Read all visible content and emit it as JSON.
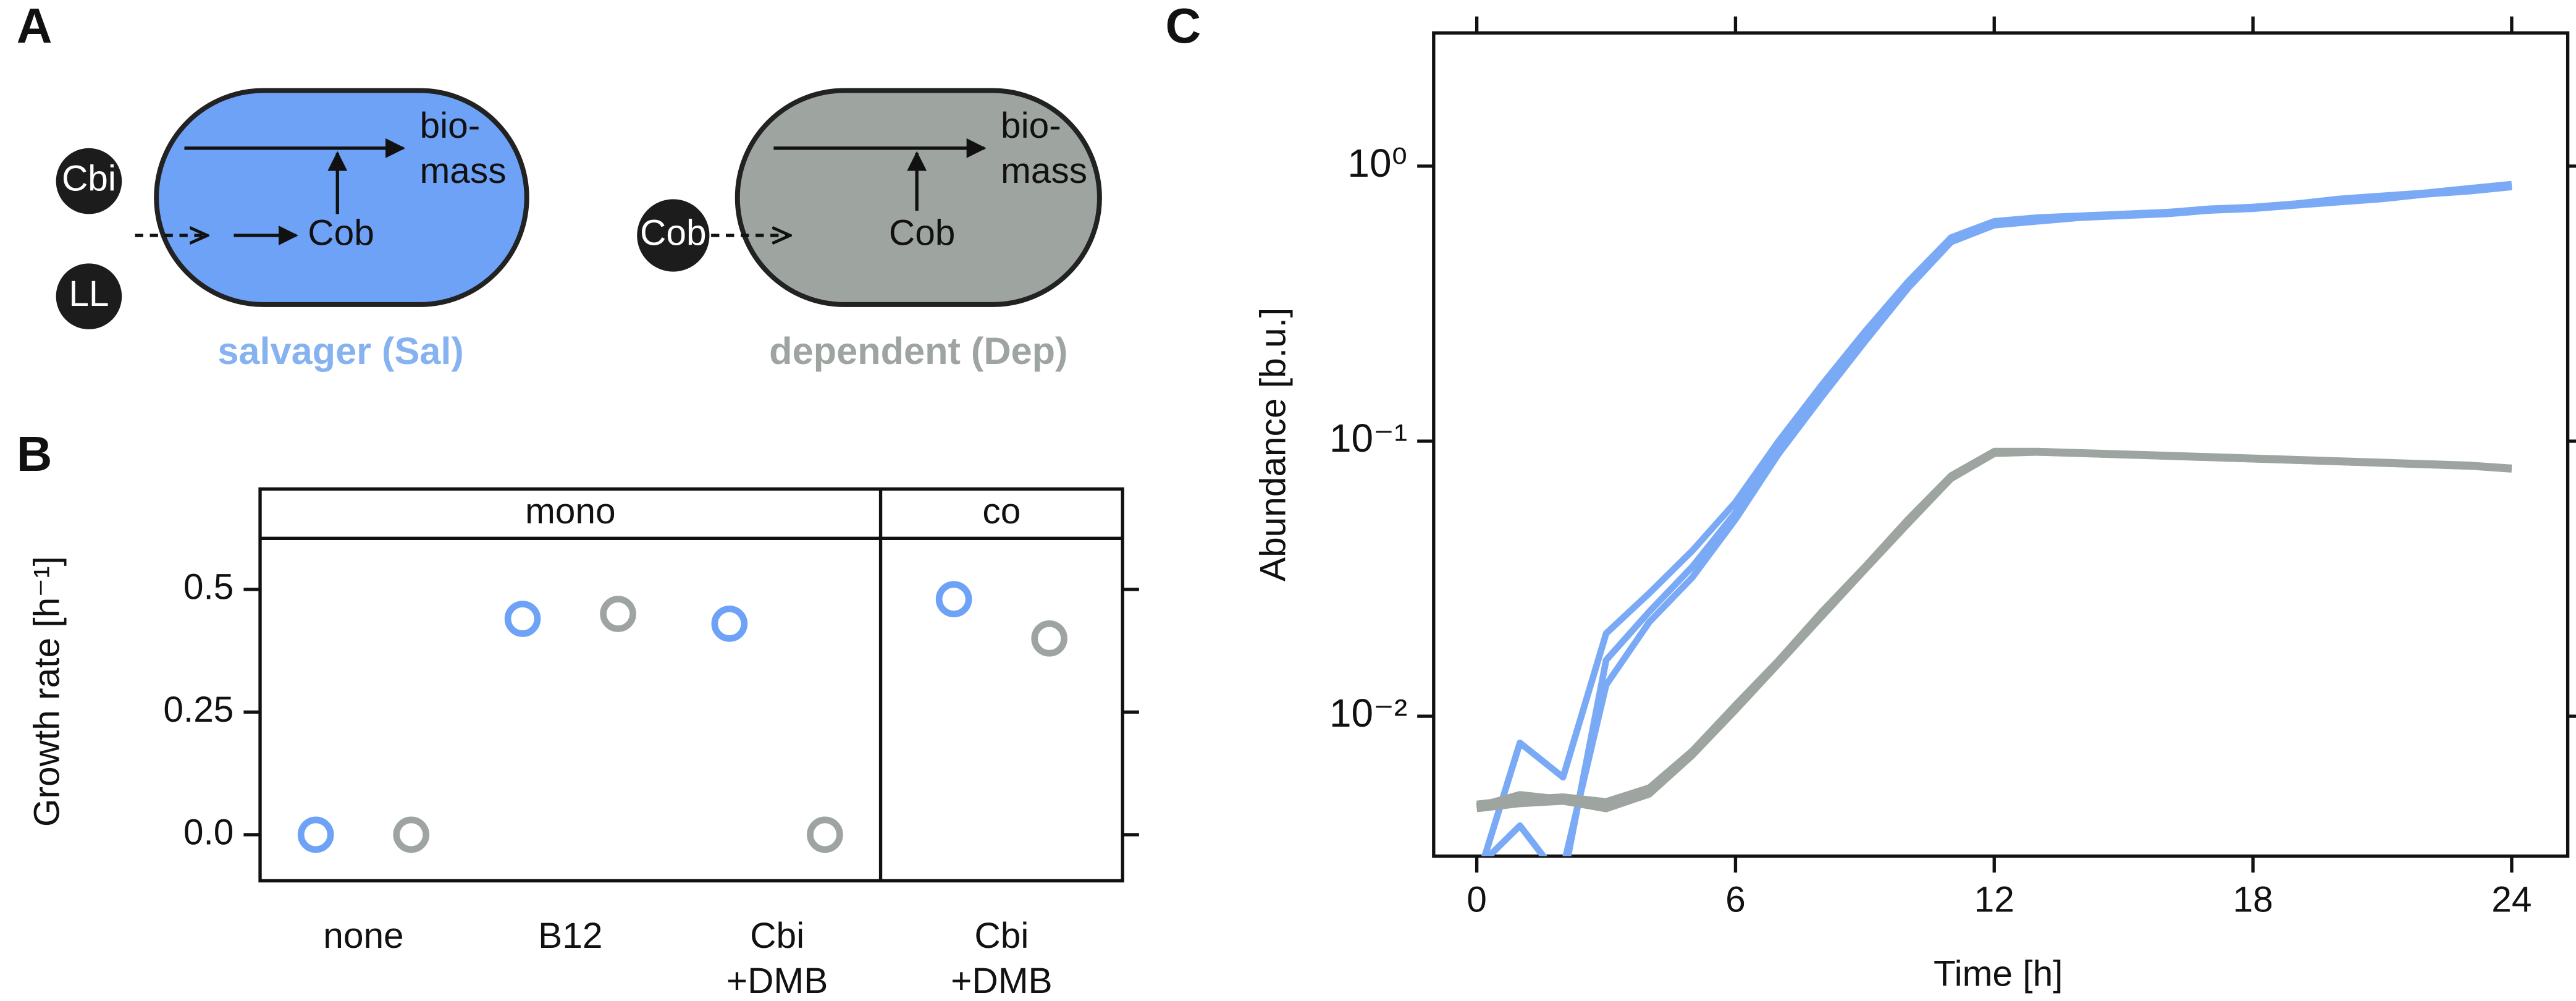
{
  "diagram": {
    "label": "A",
    "cells": [
      {
        "label": "salvager (Sal)",
        "color": "#6ea2f7",
        "label_color": "#86b2f0",
        "inputs": [
          "Cbi",
          "LL"
        ],
        "internal": "Cob",
        "output": "bio-\nmass"
      },
      {
        "label": "dependent (Dep)",
        "color": "#9ea5a1",
        "label_color": "#9ea5a1",
        "inputs": [
          "Cob"
        ],
        "internal": "Cob",
        "output": "bio-\nmass"
      }
    ]
  },
  "chart_data": [
    {
      "type": "dot",
      "label": "B",
      "ylabel": "Growth rate [h⁻¹]",
      "facets": [
        {
          "label": "mono",
          "categories": [
            "none",
            "B12",
            "Cbi\n+DMB"
          ]
        },
        {
          "label": "co",
          "categories": [
            "Cbi\n+DMB"
          ]
        }
      ],
      "series": [
        {
          "color": "#6ea2f7",
          "values": [
            0,
            0.44,
            0.43,
            0.48
          ]
        },
        {
          "color": "#9ea5a1",
          "values": [
            0,
            0.45,
            0,
            0.4
          ]
        }
      ],
      "ylim": [
        -0.094,
        0.604
      ],
      "yticks": [
        {
          "value": 0,
          "label": "0.0"
        },
        0.25,
        0.5
      ]
    },
    {
      "type": "line",
      "label": "C",
      "xlabel": "Time [h]",
      "ylabel": "Abundance [b.u.]",
      "log_y": true,
      "x": [
        0,
        1,
        2,
        3,
        4,
        5,
        6,
        7,
        8,
        9,
        10,
        11,
        12,
        13,
        14,
        15,
        16,
        17,
        18,
        19,
        20,
        21,
        22,
        23,
        24
      ],
      "series": [
        {
          "color": "#7aaaf5",
          "values": [
            0.0025,
            0.008,
            0.006,
            0.02,
            0.028,
            0.04,
            0.06,
            0.1,
            0.16,
            0.25,
            0.38,
            0.55,
            0.63,
            0.65,
            0.66,
            0.67,
            0.68,
            0.69,
            0.71,
            0.73,
            0.75,
            0.77,
            0.8,
            0.82,
            0.85
          ]
        },
        {
          "color": "#7aaaf5",
          "values": [
            0.0028,
            0.004,
            0.0025,
            0.016,
            0.024,
            0.035,
            0.055,
            0.095,
            0.15,
            0.24,
            0.37,
            0.54,
            0.62,
            0.64,
            0.65,
            0.67,
            0.68,
            0.7,
            0.71,
            0.73,
            0.76,
            0.78,
            0.8,
            0.83,
            0.86
          ]
        },
        {
          "color": "#7aaaf5",
          "values": [
            0.0026,
            0.003,
            0.0028,
            0.013,
            0.022,
            0.032,
            0.052,
            0.09,
            0.145,
            0.23,
            0.36,
            0.53,
            0.61,
            0.63,
            0.65,
            0.66,
            0.67,
            0.69,
            0.7,
            0.72,
            0.74,
            0.76,
            0.79,
            0.81,
            0.84
          ]
        },
        {
          "color": "#9ea5a1",
          "values": [
            0.0048,
            0.005,
            0.0051,
            0.0049,
            0.0055,
            0.0075,
            0.011,
            0.016,
            0.024,
            0.035,
            0.052,
            0.075,
            0.092,
            0.092,
            0.091,
            0.09,
            0.089,
            0.088,
            0.087,
            0.086,
            0.085,
            0.084,
            0.083,
            0.082,
            0.08
          ]
        },
        {
          "color": "#9ea5a1",
          "values": [
            0.0046,
            0.0048,
            0.0049,
            0.0046,
            0.0052,
            0.0072,
            0.0105,
            0.0155,
            0.023,
            0.034,
            0.05,
            0.073,
            0.09,
            0.091,
            0.09,
            0.089,
            0.088,
            0.087,
            0.086,
            0.085,
            0.084,
            0.083,
            0.082,
            0.081,
            0.079
          ]
        },
        {
          "color": "#9ea5a1",
          "values": [
            0.0047,
            0.0052,
            0.005,
            0.0047,
            0.0053,
            0.0073,
            0.0107,
            0.0158,
            0.0235,
            0.0345,
            0.051,
            0.074,
            0.091,
            0.091,
            0.09,
            0.089,
            0.088,
            0.087,
            0.086,
            0.085,
            0.084,
            0.083,
            0.082,
            0.081,
            0.08
          ]
        }
      ],
      "xlim": [
        -1.0,
        25.3
      ],
      "xticks": [
        0,
        6,
        12,
        18,
        24
      ],
      "ylim": [
        0.0031,
        3.05
      ],
      "yticks": [
        {
          "value": 1,
          "label": "10⁰"
        },
        {
          "value": 0.1,
          "label": "10⁻¹"
        },
        {
          "value": 0.01,
          "label": "10⁻²"
        }
      ]
    }
  ]
}
